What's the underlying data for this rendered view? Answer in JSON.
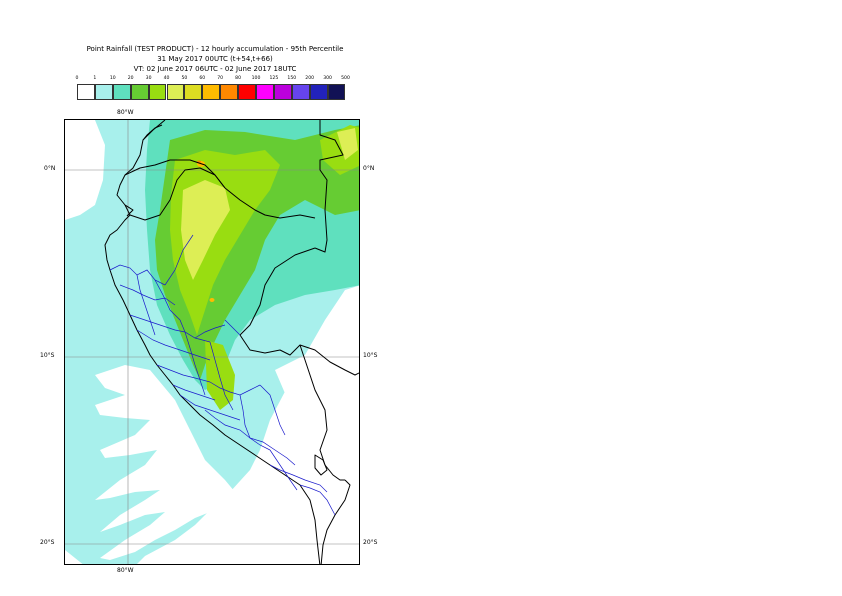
{
  "title": {
    "line1": "Point Rainfall (TEST PRODUCT) - 12 hourly accumulation - 95th Percentile",
    "line2": "31 May 2017 00UTC (t+54,t+66)",
    "line3": "VT: 02 June 2017 06UTC - 02 June 2017 18UTC"
  },
  "legend": {
    "thresholds": [
      "0",
      "1",
      "10",
      "20",
      "30",
      "40",
      "50",
      "60",
      "70",
      "80",
      "100",
      "125",
      "150",
      "200",
      "300",
      "500"
    ],
    "colors": [
      "#ffffff",
      "#a8f0ec",
      "#5fe0be",
      "#66cc33",
      "#99dd11",
      "#ddee55",
      "#dddd22",
      "#ffbb00",
      "#ff8800",
      "#ff0000",
      "#ff00ff",
      "#bb00dd",
      "#6644ee",
      "#2222bb",
      "#111155"
    ]
  },
  "axes": {
    "top_lon": "80°W",
    "bottom_lon": "80°W",
    "lat_left": [
      "0°N",
      "10°S",
      "20°S"
    ],
    "lat_right": [
      "0°N",
      "10°S",
      "20°S"
    ]
  }
}
